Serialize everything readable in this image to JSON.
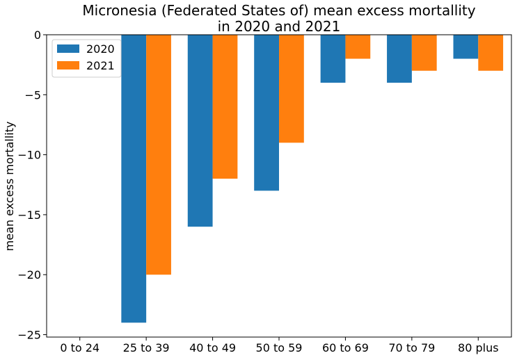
{
  "chart_data": {
    "type": "bar",
    "title_line1": "Micronesia (Federated States of) mean excess mortallity",
    "title_line2": "in 2020 and 2021",
    "xlabel": "",
    "ylabel": "mean excess mortallity",
    "categories": [
      "0 to 24",
      "25 to 39",
      "40 to 49",
      "50 to 59",
      "60 to 69",
      "70 to 79",
      "80 plus"
    ],
    "series": [
      {
        "name": "2020",
        "color": "#1f77b4",
        "values": [
          0,
          -24,
          -16,
          -13,
          -4,
          -4,
          -2
        ]
      },
      {
        "name": "2021",
        "color": "#ff7f0e",
        "values": [
          0,
          -20,
          -12,
          -9,
          -2,
          -3,
          -3
        ]
      }
    ],
    "yticks": [
      0,
      -5,
      -10,
      -15,
      -20,
      -25
    ],
    "ytick_labels": [
      "0",
      "−5",
      "−10",
      "−15",
      "−20",
      "−25"
    ],
    "ylim": [
      -25.2,
      0
    ],
    "grid": false,
    "legend_position": "top-left"
  }
}
